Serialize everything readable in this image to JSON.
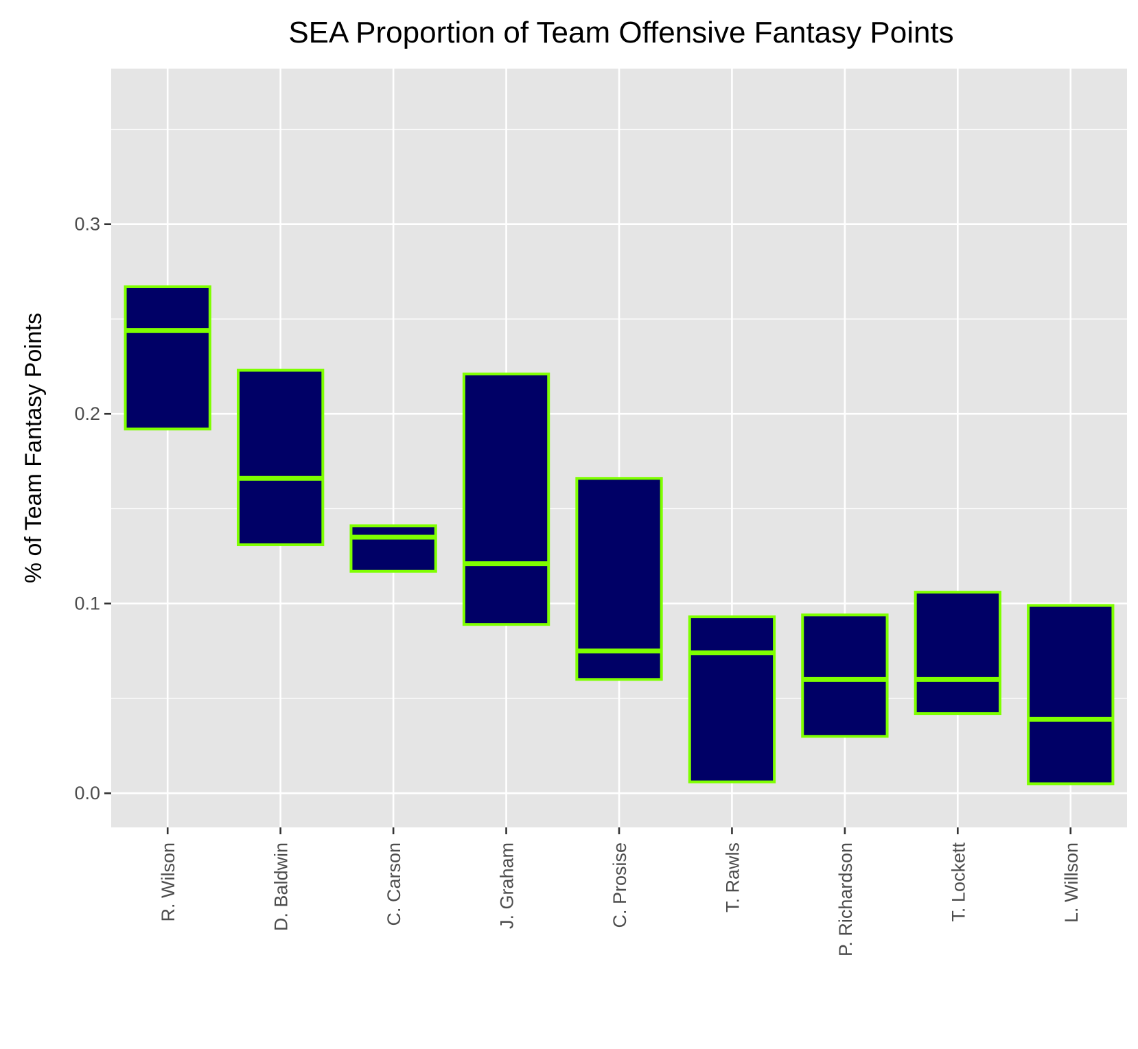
{
  "chart_data": {
    "type": "boxplot",
    "title": "SEA Proportion of Team Offensive Fantasy Points",
    "xlabel": "",
    "ylabel": "% of Team Fantasy Points",
    "ylim": [
      -0.018,
      0.382
    ],
    "yticks": [
      0.0,
      0.1,
      0.2,
      0.3
    ],
    "ytick_labels": [
      "0.0",
      "0.1",
      "0.2",
      "0.3"
    ],
    "grid": true,
    "legend": "none",
    "categories": [
      "R. Wilson",
      "D. Baldwin",
      "C. Carson",
      "J. Graham",
      "C. Prosise",
      "T. Rawls",
      "P. Richardson",
      "T. Lockett",
      "L. Willson"
    ],
    "boxes": [
      {
        "name": "R. Wilson",
        "q1": 0.192,
        "median": 0.244,
        "q3": 0.267
      },
      {
        "name": "D. Baldwin",
        "q1": 0.131,
        "median": 0.166,
        "q3": 0.223
      },
      {
        "name": "C. Carson",
        "q1": 0.117,
        "median": 0.135,
        "q3": 0.141
      },
      {
        "name": "J. Graham",
        "q1": 0.089,
        "median": 0.121,
        "q3": 0.221
      },
      {
        "name": "C. Prosise",
        "q1": 0.06,
        "median": 0.075,
        "q3": 0.166
      },
      {
        "name": "T. Rawls",
        "q1": 0.006,
        "median": 0.074,
        "q3": 0.093
      },
      {
        "name": "P. Richardson",
        "q1": 0.03,
        "median": 0.06,
        "q3": 0.094
      },
      {
        "name": "T. Lockett",
        "q1": 0.042,
        "median": 0.06,
        "q3": 0.106
      },
      {
        "name": "L. Willson",
        "q1": 0.005,
        "median": 0.039,
        "q3": 0.099
      }
    ],
    "colors": {
      "panel_background": "#e5e5e5",
      "grid": "#ffffff",
      "box_fill": "#000066",
      "box_outline": "#7fff00",
      "tick_text": "#4d4d4d",
      "tick_mark": "#333333"
    }
  }
}
